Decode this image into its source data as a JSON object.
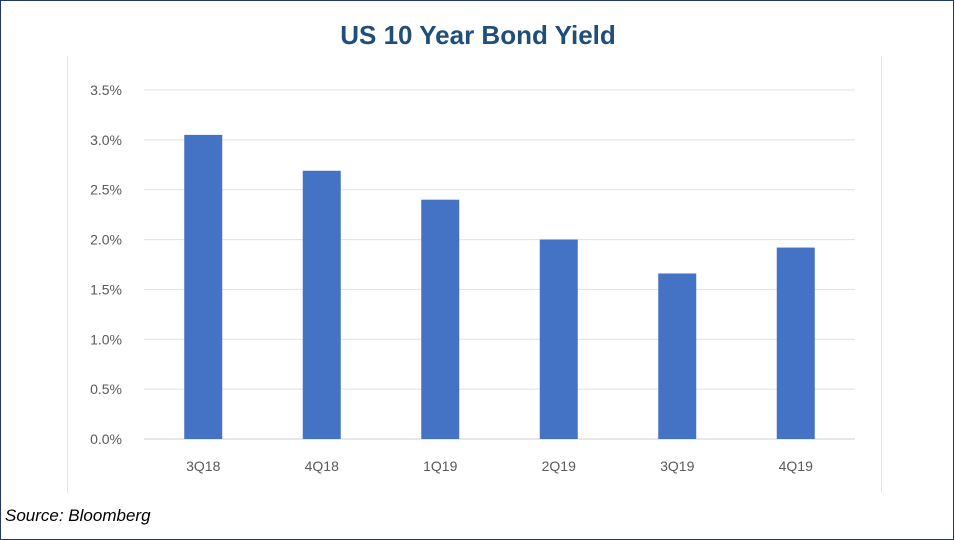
{
  "chart_data": {
    "type": "bar",
    "title": "US 10 Year Bond Yield",
    "xlabel": "",
    "ylabel": "",
    "categories": [
      "3Q18",
      "4Q18",
      "1Q19",
      "2Q19",
      "3Q19",
      "4Q19"
    ],
    "values": [
      3.05,
      2.69,
      2.4,
      2.0,
      1.66,
      1.92
    ],
    "value_unit": "%",
    "ylim": [
      0,
      3.5
    ],
    "yticks": [
      "0.0%",
      "0.5%",
      "1.0%",
      "1.5%",
      "2.0%",
      "2.5%",
      "3.0%",
      "3.5%"
    ],
    "ytick_values": [
      0,
      0.5,
      1.0,
      1.5,
      2.0,
      2.5,
      3.0,
      3.5
    ],
    "grid": true,
    "legend": "none",
    "bar_color": "#4472c4"
  },
  "source_note": "Source: Bloomberg"
}
